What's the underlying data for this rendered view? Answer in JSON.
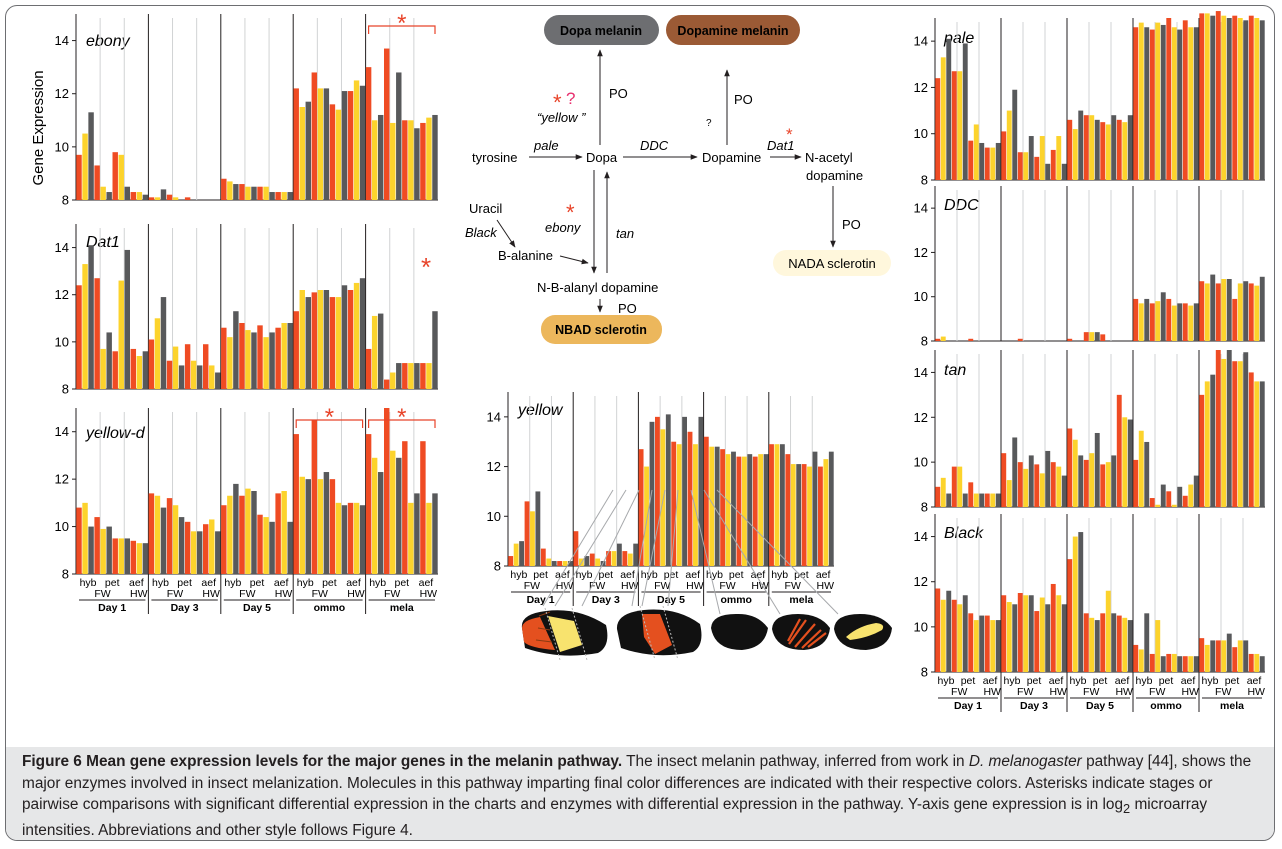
{
  "colors": {
    "hyb": "#ef4b23",
    "pet": "#fcd32c",
    "aef": "#58595b",
    "star": "#e8442a",
    "question_mark": "#e8306f"
  },
  "x_labels": {
    "categories": [
      "hyb",
      "pet",
      "aef"
    ],
    "wings": [
      "FW",
      "HW"
    ],
    "stages": [
      "Day 1",
      "Day 3",
      "Day 5",
      "ommo",
      "mela"
    ]
  },
  "y_axis_label": "Gene Expression",
  "chart_data": [
    {
      "type": "bar",
      "title": "ebony",
      "ylim": [
        8,
        15
      ],
      "yticks": [
        "8",
        "10",
        "12",
        "14"
      ],
      "stages": [
        "Day 1",
        "Day 3",
        "Day 5",
        "ommo",
        "mela"
      ],
      "bar_order": [
        "hyb FW",
        "pet FW",
        "aef FW",
        "hyb HW",
        "pet HW",
        "aef HW"
      ],
      "color_order": [
        "hyb",
        "pet",
        "aef",
        "hyb",
        "pet",
        "aef"
      ],
      "series_values": [
        [
          9.7,
          10.5,
          11.3,
          9.3,
          8.5,
          8.3,
          9.8,
          9.7,
          8.5,
          8.3,
          8.3,
          8.2
        ],
        [
          8.1,
          8.1,
          8.4,
          8.2,
          8.1,
          8.0,
          8.1,
          8.0,
          8.0,
          8.0,
          8.0,
          8.0
        ],
        [
          8.8,
          8.7,
          8.6,
          8.6,
          8.5,
          8.5,
          8.5,
          8.5,
          8.3,
          8.3,
          8.3,
          8.3
        ],
        [
          12.2,
          11.5,
          11.7,
          12.8,
          12.2,
          12.2,
          11.6,
          11.4,
          12.1,
          12.1,
          12.5,
          12.3
        ],
        [
          13.0,
          11.0,
          11.2,
          13.7,
          10.9,
          12.8,
          11.0,
          11.0,
          10.7,
          10.9,
          11.1,
          11.2
        ]
      ],
      "significance": [
        {
          "stage": "mela",
          "type": "bracket"
        }
      ]
    },
    {
      "type": "bar",
      "title": "Dat1",
      "ylim": [
        8,
        15
      ],
      "yticks": [
        "8",
        "10",
        "12",
        "14"
      ],
      "series_values": [
        [
          12.4,
          13.3,
          14.1,
          12.7,
          9.7,
          10.4,
          9.6,
          12.6,
          13.9,
          9.7,
          9.4,
          9.6
        ],
        [
          10.1,
          11.0,
          11.9,
          9.2,
          9.8,
          9.0,
          9.9,
          9.2,
          9.0,
          9.9,
          9.0,
          8.7
        ],
        [
          10.6,
          10.2,
          11.3,
          10.8,
          10.5,
          10.4,
          10.7,
          10.2,
          10.4,
          10.6,
          10.8,
          10.8
        ],
        [
          11.3,
          12.2,
          11.9,
          12.1,
          12.2,
          12.2,
          11.9,
          11.9,
          12.4,
          12.2,
          12.5,
          12.7
        ],
        [
          9.7,
          11.1,
          11.2,
          8.4,
          8.7,
          9.1,
          9.1,
          9.1,
          9.1,
          9.1,
          9.1,
          11.3
        ]
      ],
      "significance": [
        {
          "stage": "mela",
          "type": "star"
        }
      ]
    },
    {
      "type": "bar",
      "title": "yellow-d",
      "ylim": [
        8,
        15
      ],
      "yticks": [
        "8",
        "10",
        "12",
        "14"
      ],
      "series_values": [
        [
          10.8,
          11.0,
          10.0,
          10.4,
          9.9,
          10.0,
          9.5,
          9.5,
          9.5,
          9.4,
          9.3,
          9.3
        ],
        [
          11.4,
          11.3,
          10.8,
          11.2,
          10.9,
          10.4,
          10.2,
          9.8,
          9.8,
          10.1,
          10.3,
          9.8
        ],
        [
          10.9,
          11.3,
          11.8,
          11.3,
          11.6,
          11.5,
          10.5,
          10.4,
          10.2,
          11.4,
          11.5,
          10.2
        ],
        [
          13.9,
          12.1,
          12.0,
          14.5,
          12.0,
          12.3,
          12.0,
          11.0,
          10.9,
          11.0,
          11.0,
          10.9
        ],
        [
          13.9,
          12.9,
          12.3,
          15.0,
          13.2,
          12.9,
          13.6,
          11.0,
          11.4,
          13.6,
          11.0,
          11.4
        ]
      ],
      "significance": [
        {
          "stage": "ommo",
          "type": "bracket"
        },
        {
          "stage": "mela",
          "type": "bracket"
        }
      ]
    },
    {
      "type": "bar",
      "title": "yellow",
      "ylim": [
        8,
        15
      ],
      "yticks": [
        "8",
        "10",
        "12",
        "14"
      ],
      "series_values": [
        [
          8.4,
          8.9,
          9.0,
          10.6,
          10.2,
          11.0,
          8.7,
          8.3,
          8.2,
          8.2,
          8.2,
          8.2
        ],
        [
          9.4,
          8.3,
          8.4,
          8.5,
          8.3,
          8.2,
          8.6,
          8.6,
          8.9,
          8.6,
          8.5,
          8.9
        ],
        [
          12.7,
          12.0,
          13.8,
          14.0,
          13.5,
          14.1,
          13.0,
          12.9,
          14.0,
          13.4,
          12.9,
          14.0
        ],
        [
          13.2,
          12.8,
          12.8,
          12.7,
          12.5,
          12.6,
          12.4,
          12.4,
          12.5,
          12.4,
          12.5,
          12.5
        ],
        [
          12.9,
          12.9,
          12.9,
          12.5,
          12.1,
          12.1,
          12.1,
          12.0,
          12.6,
          12.0,
          12.3,
          12.6
        ]
      ],
      "significance": []
    },
    {
      "type": "bar",
      "title": "pale",
      "ylim": [
        8,
        15
      ],
      "yticks": [
        "8",
        "10",
        "12",
        "14"
      ],
      "series_values": [
        [
          12.4,
          13.3,
          14.1,
          12.7,
          12.7,
          13.9,
          9.7,
          10.4,
          9.6,
          9.4,
          9.4,
          9.6
        ],
        [
          10.1,
          11.0,
          11.9,
          9.2,
          9.2,
          9.9,
          9.0,
          9.9,
          8.7,
          9.3,
          9.9,
          8.7
        ],
        [
          10.6,
          10.2,
          11.0,
          10.8,
          10.8,
          10.6,
          10.5,
          10.4,
          10.8,
          10.6,
          10.5,
          10.8
        ],
        [
          14.6,
          14.8,
          14.6,
          14.5,
          14.8,
          14.7,
          15.0,
          14.6,
          14.5,
          14.9,
          14.6,
          14.6
        ],
        [
          15.2,
          15.2,
          15.1,
          15.3,
          15.1,
          15.0,
          15.1,
          15.0,
          14.9,
          15.1,
          15.0,
          14.9
        ]
      ],
      "significance": []
    },
    {
      "type": "bar",
      "title": "DDC",
      "ylim": [
        8,
        15
      ],
      "yticks": [
        "8",
        "10",
        "12",
        "14"
      ],
      "series_values": [
        [
          8.1,
          8.2,
          8.0,
          8.0,
          8.0,
          8.0,
          8.1,
          8.0,
          8.0,
          8.0,
          8.0,
          8.0
        ],
        [
          8.0,
          8.0,
          8.0,
          8.1,
          8.0,
          8.0,
          8.0,
          8.0,
          8.0,
          8.0,
          8.0,
          8.0
        ],
        [
          8.1,
          8.0,
          8.0,
          8.4,
          8.4,
          8.4,
          8.3,
          8.0,
          8.0,
          8.0,
          8.0,
          8.0
        ],
        [
          9.9,
          9.7,
          9.9,
          9.7,
          9.8,
          10.2,
          9.9,
          9.6,
          9.7,
          9.7,
          9.6,
          9.7
        ],
        [
          10.7,
          10.6,
          11.0,
          10.6,
          10.8,
          10.8,
          9.9,
          10.6,
          10.7,
          10.6,
          10.5,
          10.9
        ]
      ],
      "significance": []
    },
    {
      "type": "bar",
      "title": "tan",
      "ylim": [
        8,
        15
      ],
      "yticks": [
        "8",
        "10",
        "12",
        "14"
      ],
      "series_values": [
        [
          8.9,
          9.3,
          8.6,
          9.8,
          9.8,
          8.6,
          9.1,
          8.6,
          8.6,
          8.6,
          8.6,
          8.6
        ],
        [
          10.4,
          9.2,
          11.1,
          10.0,
          9.7,
          10.3,
          9.9,
          9.5,
          10.5,
          10.0,
          9.8,
          9.4
        ],
        [
          11.5,
          11.0,
          10.3,
          10.1,
          10.4,
          11.3,
          9.9,
          10.0,
          10.3,
          13.0,
          12.0,
          11.9
        ],
        [
          10.1,
          11.4,
          10.9,
          8.4,
          8.1,
          9.0,
          8.7,
          8.1,
          8.9,
          8.5,
          9.0,
          9.4
        ],
        [
          13.0,
          13.6,
          13.9,
          15.0,
          14.6,
          15.0,
          14.5,
          14.5,
          14.9,
          14.0,
          13.6,
          13.6
        ]
      ],
      "significance": []
    },
    {
      "type": "bar",
      "title": "Black",
      "ylim": [
        8,
        15
      ],
      "yticks": [
        "8",
        "10",
        "12",
        "14"
      ],
      "series_values": [
        [
          11.7,
          11.2,
          11.6,
          11.2,
          11.0,
          11.4,
          10.6,
          10.3,
          10.5,
          10.5,
          10.3,
          10.3
        ],
        [
          11.4,
          11.1,
          11.0,
          11.5,
          11.4,
          11.4,
          10.7,
          11.3,
          11.0,
          11.9,
          11.4,
          11.0
        ],
        [
          13.0,
          14.0,
          14.2,
          10.6,
          10.4,
          10.3,
          10.6,
          11.6,
          10.6,
          10.5,
          10.4,
          10.3
        ],
        [
          9.2,
          9.0,
          10.6,
          8.8,
          10.3,
          8.7,
          8.8,
          8.8,
          8.7,
          8.7,
          8.7,
          8.7
        ],
        [
          9.5,
          9.2,
          9.4,
          9.4,
          9.4,
          9.7,
          9.1,
          9.4,
          9.4,
          8.8,
          8.8,
          8.7
        ]
      ],
      "significance": []
    }
  ],
  "pathway": {
    "pills": {
      "dopa_melanin": "Dopa melanin",
      "dopamine_melanin": "Dopamine melanin",
      "nada_sclerotin": "NADA sclerotin",
      "nbad_sclerotin": "NBAD sclerotin"
    },
    "pill_colors": {
      "dopa_melanin": "#6d6e71",
      "dopamine_melanin": "#9b5a35",
      "nada_sclerotin": "#fff7dc",
      "nbad_sclerotin": "#ecb75c"
    },
    "nodes": {
      "tyrosine": "tyrosine",
      "dopa": "Dopa",
      "dopamine": "Dopamine",
      "nacetyl_1": "N-acetyl",
      "nacetyl_2": "dopamine",
      "uracil": "Uracil",
      "b_alanine": "B-alanine",
      "nbad": "N-B-alanyl dopamine"
    },
    "enzymes": {
      "pale": "pale",
      "ddc": "DDC",
      "dat1": "Dat1",
      "yellow": "“yellow ”",
      "ebony": "ebony",
      "tan": "tan",
      "black": "Black",
      "po": "PO",
      "unknown": "?"
    }
  },
  "wing_illustrations": [
    "hyb-wing",
    "pet-wing",
    "aef-wing",
    "ommo-wing",
    "mela-wing"
  ],
  "caption": {
    "title": "Figure 6 Mean gene expression levels for the major genes in the melanin pathway.",
    "sentence1_pre": "The insect melanin pathway, inferred from work in",
    "species": "D. melanogaster",
    "sentence1_post": "pathway [44], shows the major enzymes involved in insect melanization. Molecules in this pathway imparting final color differences are indicated with their respective colors. Asterisks indicate stages or pairwise comparisons with significant differential expression in the charts and enzymes with differential expression in the pathway. Y-axis gene expression is in log",
    "log_subscript": "2",
    "sentence_end": "microarray intensities. Abbreviations and other style follows Figure 4."
  }
}
